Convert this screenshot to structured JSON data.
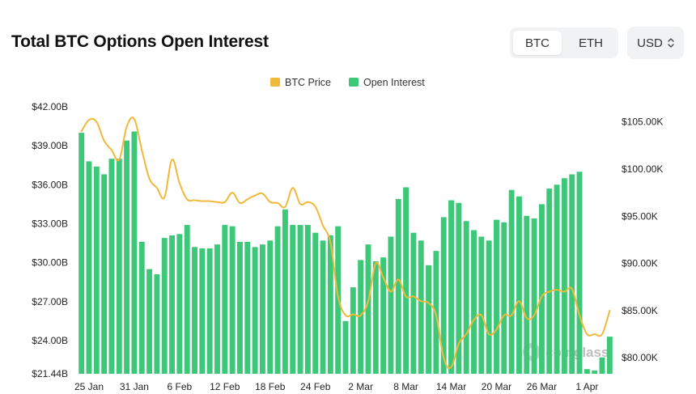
{
  "header": {
    "title": "Total BTC Options Open Interest",
    "asset_tabs": [
      "BTC",
      "ETH"
    ],
    "active_asset": "BTC",
    "currency": "USD"
  },
  "watermark": "coinglass",
  "colors": {
    "bar": "#3cc878",
    "price_line": "#f0b93a"
  },
  "chart_data": {
    "type": "bar",
    "title": "Total BTC Options Open Interest",
    "legend": [
      {
        "name": "BTC Price",
        "color": "#f0b93a",
        "kind": "line"
      },
      {
        "name": "Open Interest",
        "color": "#3cc878",
        "kind": "bar"
      }
    ],
    "legend_position": "top-center",
    "x_tick_labels": [
      "25 Jan",
      "31 Jan",
      "6 Feb",
      "12 Feb",
      "18 Feb",
      "24 Feb",
      "2 Mar",
      "8 Mar",
      "14 Mar",
      "20 Mar",
      "26 Mar",
      "1 Apr"
    ],
    "x_tick_indices": [
      1,
      7,
      13,
      19,
      25,
      31,
      37,
      43,
      49,
      55,
      61,
      67
    ],
    "y_left": {
      "ticks": [
        "$21.44B",
        "$24.00B",
        "$27.00B",
        "$30.00B",
        "$33.00B",
        "$36.00B",
        "$39.00B",
        "$42.00B"
      ],
      "tick_values": [
        21.44,
        24,
        27,
        30,
        33,
        36,
        39,
        42
      ],
      "range": [
        21.44,
        42.0
      ],
      "unit": "USD billions"
    },
    "y_right": {
      "ticks": [
        "$80.00K",
        "$85.00K",
        "$90.00K",
        "$95.00K",
        "$100.00K",
        "$105.00K"
      ],
      "tick_values": [
        80,
        85,
        90,
        95,
        100,
        105
      ],
      "range": [
        78.3,
        106.6
      ],
      "unit": "USD thousands"
    },
    "grid": false,
    "series": [
      {
        "name": "Open Interest",
        "axis": "left",
        "values": [
          40.0,
          37.8,
          37.4,
          36.8,
          38.0,
          38.0,
          39.4,
          40.1,
          31.6,
          29.5,
          29.1,
          31.9,
          32.1,
          32.2,
          32.9,
          31.2,
          31.1,
          31.1,
          31.4,
          32.9,
          32.8,
          31.6,
          31.6,
          31.2,
          31.4,
          31.7,
          32.8,
          34.1,
          32.9,
          32.9,
          32.9,
          32.3,
          31.7,
          32.1,
          32.8,
          25.5,
          28.1,
          30.2,
          31.4,
          30.1,
          30.4,
          32.0,
          34.9,
          35.8,
          32.3,
          31.7,
          29.8,
          30.9,
          33.5,
          34.8,
          34.6,
          33.2,
          32.5,
          32.0,
          31.7,
          33.3,
          33.1,
          35.6,
          35.1,
          33.6,
          33.4,
          34.5,
          35.7,
          36.0,
          36.5,
          36.8,
          37.0,
          21.8,
          21.7,
          22.7,
          24.3
        ]
      },
      {
        "name": "BTC Price",
        "axis": "right",
        "values": [
          104.0,
          105.2,
          105.0,
          103.0,
          102.0,
          101.0,
          104.5,
          105.3,
          102.0,
          99.0,
          98.0,
          97.0,
          101.0,
          98.5,
          96.8,
          96.7,
          96.6,
          96.6,
          96.5,
          96.5,
          97.5,
          96.4,
          96.8,
          97.2,
          97.4,
          96.5,
          96.4,
          96.0,
          98.0,
          96.3,
          96.5,
          96.0,
          94.0,
          92.2,
          86.5,
          84.5,
          84.6,
          84.5,
          86.0,
          90.0,
          88.5,
          87.0,
          88.3,
          86.5,
          86.5,
          86.0,
          85.8,
          84.5,
          80.0,
          79.0,
          81.5,
          82.5,
          84.0,
          84.5,
          82.5,
          83.0,
          84.5,
          84.5,
          86.0,
          84.2,
          84.5,
          86.5,
          87.0,
          87.2,
          87.0,
          87.3,
          84.5,
          82.5,
          82.5,
          82.5,
          85.0
        ]
      }
    ],
    "x_count": 71
  }
}
